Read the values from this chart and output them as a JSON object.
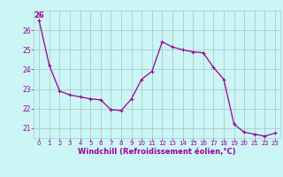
{
  "x": [
    0,
    1,
    2,
    3,
    4,
    5,
    6,
    7,
    8,
    9,
    10,
    11,
    12,
    13,
    14,
    15,
    16,
    17,
    18,
    19,
    20,
    21,
    22,
    23
  ],
  "y": [
    26.5,
    24.2,
    22.9,
    22.7,
    22.6,
    22.5,
    22.45,
    21.95,
    21.9,
    22.5,
    23.5,
    23.9,
    25.4,
    25.15,
    25.0,
    24.9,
    24.85,
    24.1,
    23.5,
    21.2,
    20.8,
    20.7,
    20.6,
    20.75
  ],
  "line_color": "#990099",
  "marker": "+",
  "marker_size": 3.5,
  "marker_lw": 0.8,
  "line_width": 0.9,
  "bg_color": "#ccf5f5",
  "grid_color": "#aacccc",
  "xlabel": "Windchill (Refroidissement éolien,°C)",
  "xlabel_color": "#990099",
  "tick_color": "#990099",
  "ylim": [
    20.5,
    27.0
  ],
  "yticks": [
    21,
    22,
    23,
    24,
    25,
    26
  ],
  "xlim": [
    -0.5,
    23.5
  ],
  "xticks": [
    0,
    1,
    2,
    3,
    4,
    5,
    6,
    7,
    8,
    9,
    10,
    11,
    12,
    13,
    14,
    15,
    16,
    17,
    18,
    19,
    20,
    21,
    22,
    23
  ],
  "top_label": "26",
  "top_label_color": "#990099"
}
